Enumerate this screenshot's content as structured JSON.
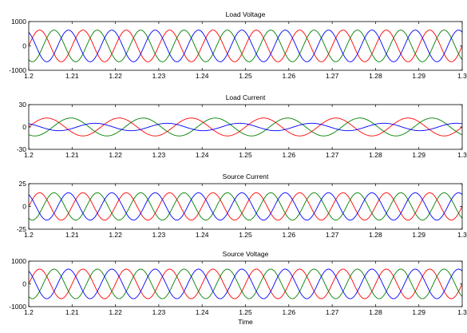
{
  "chart_data": [
    {
      "type": "line",
      "title": "Load Voltage",
      "xlabel": "",
      "ylabel": "",
      "xlim": [
        1.2,
        1.3
      ],
      "ylim": [
        -1000,
        1000
      ],
      "xticks": [
        "1.2",
        "1.21",
        "1.22",
        "1.23",
        "1.24",
        "1.25",
        "1.26",
        "1.27",
        "1.28",
        "1.29",
        "1.3"
      ],
      "yticks": [
        "-1000",
        "0",
        "1000"
      ],
      "waveform": {
        "kind": "three-phase sinusoid",
        "amplitude": 650,
        "frequency_hz": 100,
        "phase_spacing_deg": 120
      },
      "series_colors": [
        "#ff0000",
        "#008000",
        "#0000ff"
      ],
      "grid": false
    },
    {
      "type": "line",
      "title": "Load Current",
      "xlabel": "",
      "ylabel": "",
      "xlim": [
        1.2,
        1.3
      ],
      "ylim": [
        -30,
        30
      ],
      "xticks": [
        "1.2",
        "1.21",
        "1.22",
        "1.23",
        "1.24",
        "1.25",
        "1.26",
        "1.27",
        "1.28",
        "1.29",
        "1.3"
      ],
      "yticks": [
        "-30",
        "0",
        "30"
      ],
      "waveform": {
        "kind": "three-phase sinusoid",
        "amplitudes": [
          12,
          12,
          5
        ],
        "frequency_hz": 60,
        "phase_spacing_deg": 120
      },
      "series_colors": [
        "#ff0000",
        "#008000",
        "#0000ff"
      ],
      "grid": false
    },
    {
      "type": "line",
      "title": "Source Current",
      "xlabel": "",
      "ylabel": "",
      "xlim": [
        1.2,
        1.3
      ],
      "ylim": [
        -25,
        25
      ],
      "xticks": [
        "1.2",
        "1.21",
        "1.22",
        "1.23",
        "1.24",
        "1.25",
        "1.26",
        "1.27",
        "1.28",
        "1.29",
        "1.3"
      ],
      "yticks": [
        "-25",
        "0",
        "25"
      ],
      "waveform": {
        "kind": "three-phase sinusoid",
        "amplitude": 15,
        "frequency_hz": 100,
        "phase_spacing_deg": 120
      },
      "series_colors": [
        "#ff0000",
        "#008000",
        "#0000ff"
      ],
      "grid": false
    },
    {
      "type": "line",
      "title": "Source Voltage",
      "xlabel": "Time",
      "ylabel": "",
      "xlim": [
        1.2,
        1.3
      ],
      "ylim": [
        -1000,
        1000
      ],
      "xticks": [
        "1.2",
        "1.21",
        "1.22",
        "1.23",
        "1.24",
        "1.25",
        "1.26",
        "1.27",
        "1.28",
        "1.29",
        "1.3"
      ],
      "yticks": [
        "-1000",
        "0",
        "1000"
      ],
      "waveform": {
        "kind": "three-phase sinusoid",
        "amplitude": 650,
        "frequency_hz": 100,
        "phase_spacing_deg": 120
      },
      "series_colors": [
        "#ff0000",
        "#008000",
        "#0000ff"
      ],
      "grid": false
    }
  ]
}
